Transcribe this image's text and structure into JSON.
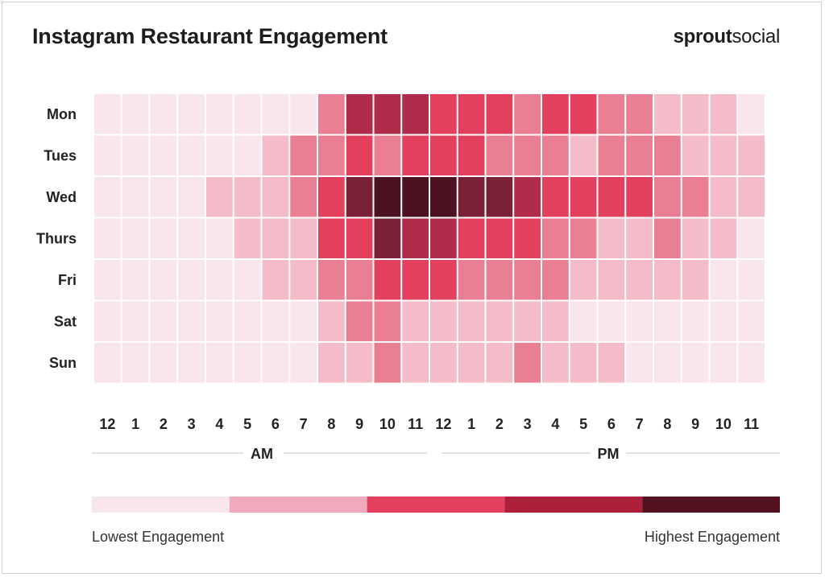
{
  "header": {
    "title": "Instagram Restaurant Engagement",
    "logo_bold": "sprout",
    "logo_light": "social"
  },
  "colors": {
    "levels": [
      "#f8e6ec",
      "#f4bcc8",
      "#ea7f93",
      "#e2405c",
      "#b12b4a",
      "#7b2135",
      "#4d1222"
    ],
    "legend": [
      "#f8e6ec",
      "#f0aabe",
      "#e2405c",
      "#ae1f3c",
      "#53111f"
    ],
    "rule": "#e2e2e2"
  },
  "chart_data": {
    "type": "heatmap",
    "title": "Instagram Restaurant Engagement",
    "rows": [
      "Mon",
      "Tues",
      "Wed",
      "Thurs",
      "Fri",
      "Sat",
      "Sun"
    ],
    "columns": [
      "12",
      "1",
      "2",
      "3",
      "4",
      "5",
      "6",
      "7",
      "8",
      "9",
      "10",
      "11",
      "12",
      "1",
      "2",
      "3",
      "4",
      "5",
      "6",
      "7",
      "8",
      "9",
      "10",
      "11"
    ],
    "periods": [
      "AM",
      "PM"
    ],
    "scale_min": 0,
    "scale_max": 6,
    "values": [
      [
        0,
        0,
        0,
        0,
        0,
        0,
        0,
        0,
        2,
        4,
        4,
        4,
        3,
        3,
        3,
        2,
        3,
        3,
        2,
        2,
        1,
        1,
        1,
        0
      ],
      [
        0,
        0,
        0,
        0,
        0,
        0,
        1,
        2,
        2,
        3,
        2,
        3,
        3,
        3,
        2,
        2,
        2,
        1,
        2,
        2,
        2,
        1,
        1,
        1
      ],
      [
        0,
        0,
        0,
        0,
        1,
        1,
        1,
        2,
        3,
        5,
        6,
        6,
        6,
        5,
        5,
        4,
        3,
        3,
        3,
        3,
        2,
        2,
        1,
        1
      ],
      [
        0,
        0,
        0,
        0,
        0,
        1,
        1,
        1,
        3,
        3,
        5,
        4,
        4,
        3,
        3,
        3,
        2,
        2,
        1,
        1,
        2,
        1,
        1,
        0
      ],
      [
        0,
        0,
        0,
        0,
        0,
        0,
        1,
        1,
        2,
        2,
        3,
        3,
        3,
        2,
        2,
        2,
        2,
        1,
        1,
        1,
        1,
        1,
        0,
        0
      ],
      [
        0,
        0,
        0,
        0,
        0,
        0,
        0,
        0,
        1,
        2,
        2,
        1,
        1,
        1,
        1,
        1,
        1,
        0,
        0,
        0,
        0,
        0,
        0,
        0
      ],
      [
        0,
        0,
        0,
        0,
        0,
        0,
        0,
        0,
        1,
        1,
        2,
        1,
        1,
        1,
        1,
        2,
        1,
        1,
        1,
        0,
        0,
        0,
        0,
        0
      ]
    ],
    "legend": {
      "low_label": "Lowest Engagement",
      "high_label": "Highest Engagement"
    }
  }
}
